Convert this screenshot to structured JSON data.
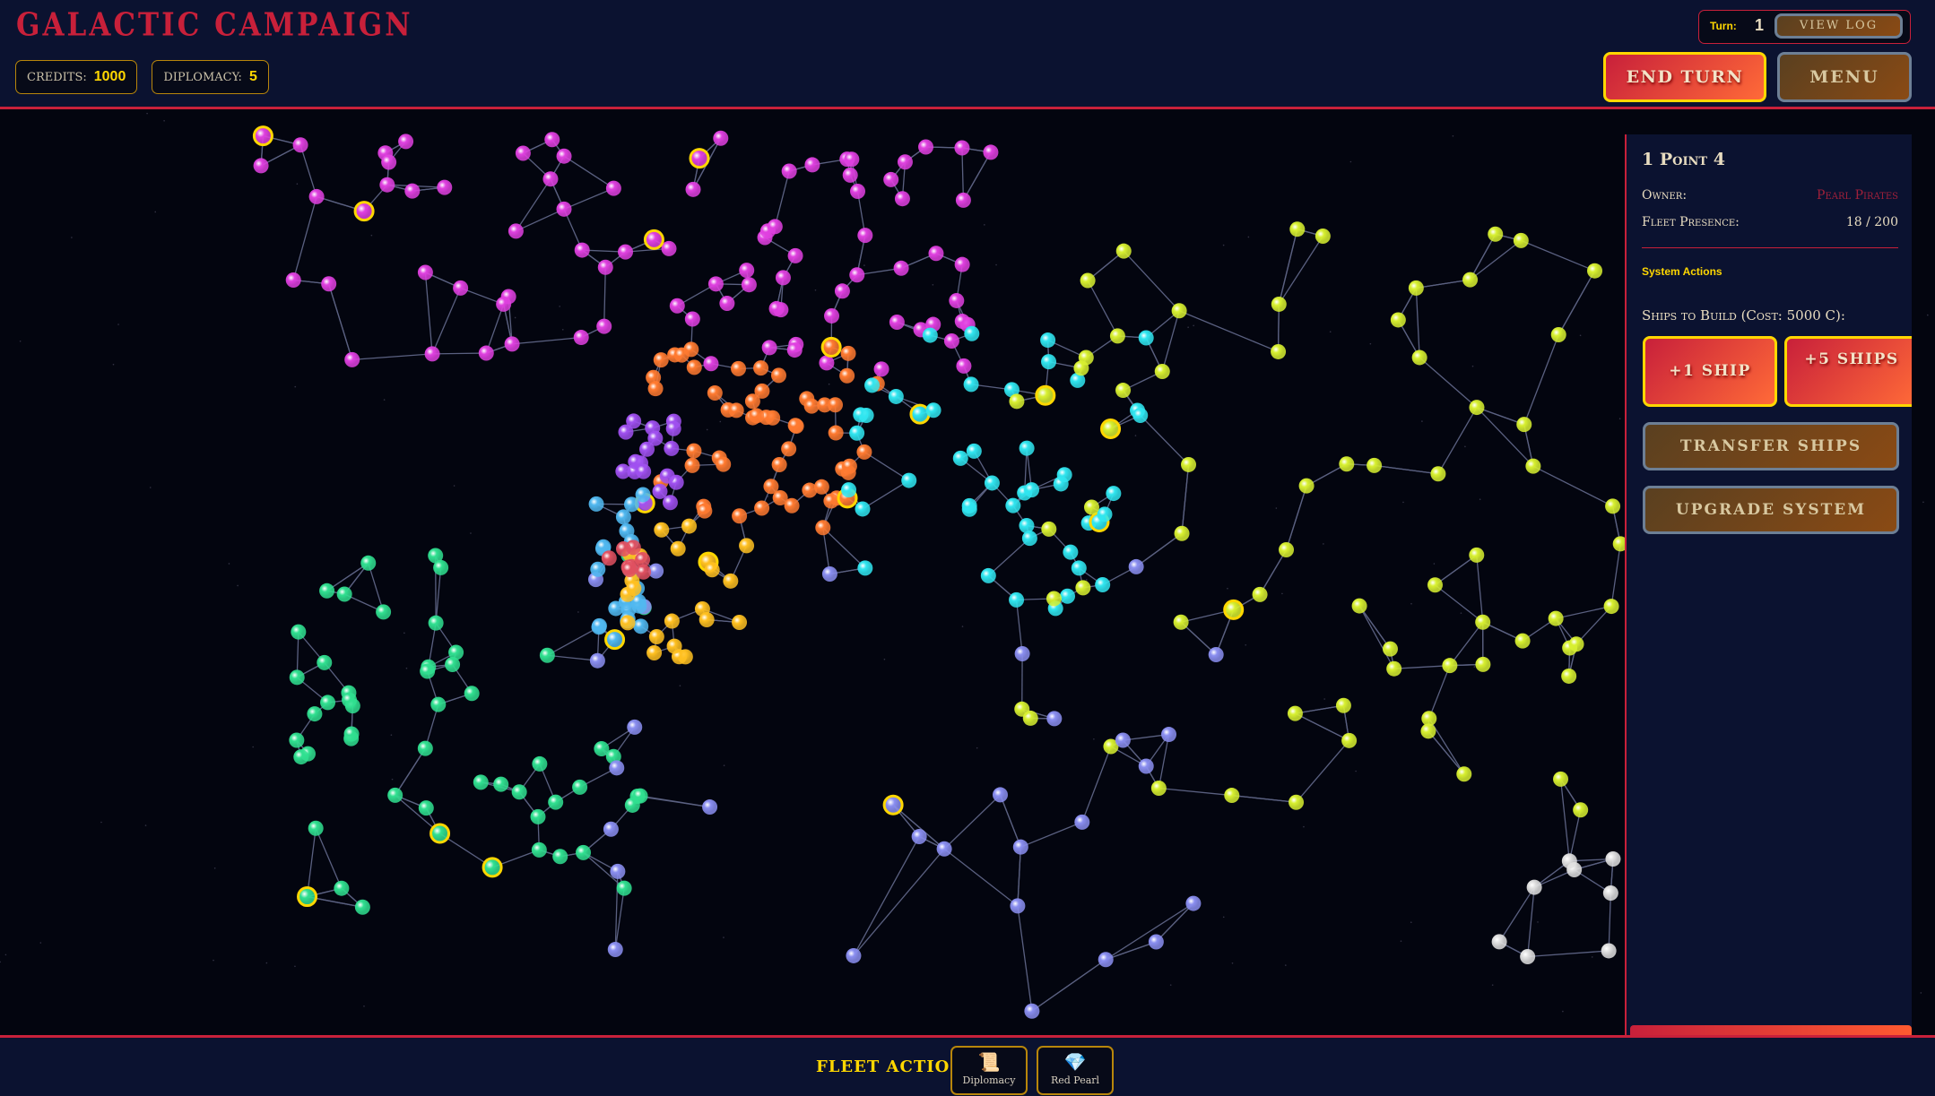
{
  "header": {
    "title": "Galactic Campaign",
    "credits_label": "Credits:",
    "credits": "1000",
    "diplomacy_label": "Diplomacy:",
    "diplomacy": "5",
    "turn_label": "Turn:",
    "turn": "1",
    "view_log": "View Log",
    "end_turn": "End Turn",
    "menu": "Menu"
  },
  "panel": {
    "title": "1 Point 4",
    "owner_label": "Owner:",
    "owner": "Pearl Pirates",
    "owner_color": "#a0203a",
    "fleet_label": "Fleet Presence:",
    "fleet": "18 / 200",
    "system_actions": "System Actions",
    "build_label": "Ships to Build (Cost: 5000 C):",
    "build_one": "+1 Ship",
    "build_five": "+5 Ships",
    "transfer": "Transfer Ships",
    "upgrade": "Upgrade System"
  },
  "bottom": {
    "fleet_actions": "Fleet Actions",
    "actions": [
      {
        "label": "Diplomacy",
        "icon": "scroll-icon"
      },
      {
        "label": "Red Pearl",
        "icon": "gem-icon"
      }
    ]
  },
  "map": {
    "factions": [
      {
        "color": "#e040e0"
      },
      {
        "color": "#ff7a30"
      },
      {
        "color": "#30e6f0"
      },
      {
        "color": "#d8f030"
      },
      {
        "color": "#30e090"
      },
      {
        "color": "#8a8ef0"
      },
      {
        "color": "#e0e0e0"
      },
      {
        "color": "#a050f0"
      },
      {
        "color": "#50b8f0"
      },
      {
        "color": "#ffc020"
      },
      {
        "color": "#e05060"
      }
    ],
    "highlight_color": "#ffd700",
    "edge_color": "#5a6080"
  }
}
